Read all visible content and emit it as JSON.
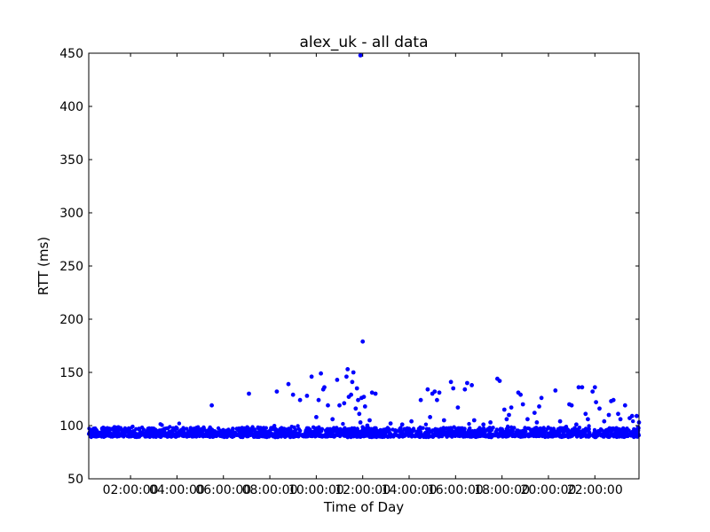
{
  "chart_data": {
    "type": "scatter",
    "title": "alex_uk - all data",
    "xlabel": "Time of Day",
    "ylabel": "RTT (ms)",
    "xlim": [
      0.2,
      23.9
    ],
    "ylim": [
      50,
      450
    ],
    "grid": false,
    "x_ticks": [
      {
        "value": 2,
        "label": "02:00:00"
      },
      {
        "value": 4,
        "label": "04:00:00"
      },
      {
        "value": 6,
        "label": "06:00:00"
      },
      {
        "value": 8,
        "label": "08:00:00"
      },
      {
        "value": 10,
        "label": "10:00:00"
      },
      {
        "value": 12,
        "label": "12:00:00"
      },
      {
        "value": 14,
        "label": "14:00:00"
      },
      {
        "value": 16,
        "label": "16:00:00"
      },
      {
        "value": 18,
        "label": "18:00:00"
      },
      {
        "value": 20,
        "label": "20:00:00"
      },
      {
        "value": 22,
        "label": "22:00:00"
      }
    ],
    "y_ticks": [
      50,
      100,
      150,
      200,
      250,
      300,
      350,
      400,
      450
    ],
    "color": "#0000ff",
    "baseline": {
      "x_range": [
        0.2,
        23.9
      ],
      "y_range": [
        88,
        99
      ],
      "note_count": 2000
    },
    "series": [
      {
        "name": "",
        "points": [
          [
            11.9,
            448
          ],
          [
            12.0,
            179
          ],
          [
            5.5,
            119
          ],
          [
            7.1,
            130
          ],
          [
            8.3,
            132
          ],
          [
            8.8,
            139
          ],
          [
            9.0,
            129
          ],
          [
            9.3,
            124
          ],
          [
            9.6,
            128
          ],
          [
            9.8,
            146
          ],
          [
            10.0,
            108
          ],
          [
            10.1,
            124
          ],
          [
            10.2,
            149
          ],
          [
            10.3,
            134
          ],
          [
            10.35,
            136
          ],
          [
            10.5,
            119
          ],
          [
            10.7,
            106
          ],
          [
            10.9,
            143
          ],
          [
            11.0,
            119
          ],
          [
            11.2,
            121
          ],
          [
            11.3,
            146
          ],
          [
            11.35,
            153
          ],
          [
            11.4,
            127
          ],
          [
            11.5,
            129
          ],
          [
            11.55,
            141
          ],
          [
            11.6,
            150
          ],
          [
            11.7,
            116
          ],
          [
            11.75,
            135
          ],
          [
            11.8,
            124
          ],
          [
            11.85,
            111
          ],
          [
            11.9,
            103
          ],
          [
            11.95,
            126
          ],
          [
            12.05,
            127
          ],
          [
            12.1,
            118
          ],
          [
            12.2,
            100
          ],
          [
            12.3,
            105
          ],
          [
            12.4,
            131
          ],
          [
            12.55,
            130
          ],
          [
            12.8,
            95
          ],
          [
            13.2,
            102
          ],
          [
            13.7,
            101
          ],
          [
            14.1,
            104
          ],
          [
            14.5,
            124
          ],
          [
            14.8,
            134
          ],
          [
            15.0,
            130
          ],
          [
            15.1,
            132
          ],
          [
            15.2,
            124
          ],
          [
            15.3,
            131
          ],
          [
            14.9,
            108
          ],
          [
            15.5,
            105
          ],
          [
            15.8,
            141
          ],
          [
            15.9,
            135
          ],
          [
            16.1,
            117
          ],
          [
            16.4,
            134
          ],
          [
            16.5,
            140
          ],
          [
            16.7,
            138
          ],
          [
            16.8,
            105
          ],
          [
            17.2,
            101
          ],
          [
            17.5,
            103
          ],
          [
            17.8,
            144
          ],
          [
            17.9,
            142
          ],
          [
            18.1,
            115
          ],
          [
            18.3,
            110
          ],
          [
            18.4,
            117
          ],
          [
            18.2,
            106
          ],
          [
            18.7,
            131
          ],
          [
            18.8,
            129
          ],
          [
            18.9,
            120
          ],
          [
            19.1,
            106
          ],
          [
            19.4,
            112
          ],
          [
            19.6,
            118
          ],
          [
            19.7,
            126
          ],
          [
            19.5,
            103
          ],
          [
            20.3,
            133
          ],
          [
            20.5,
            104
          ],
          [
            20.9,
            120
          ],
          [
            21.0,
            119
          ],
          [
            21.2,
            101
          ],
          [
            21.3,
            136
          ],
          [
            21.45,
            136
          ],
          [
            21.6,
            111
          ],
          [
            21.7,
            106
          ],
          [
            21.9,
            132
          ],
          [
            22.0,
            136
          ],
          [
            22.05,
            122
          ],
          [
            22.2,
            116
          ],
          [
            22.4,
            104
          ],
          [
            22.6,
            110
          ],
          [
            22.7,
            123
          ],
          [
            22.8,
            124
          ],
          [
            23.0,
            111
          ],
          [
            23.1,
            106
          ],
          [
            23.3,
            119
          ],
          [
            23.5,
            107
          ],
          [
            23.6,
            109
          ],
          [
            23.8,
            109
          ],
          [
            23.9,
            103
          ]
        ]
      }
    ]
  }
}
